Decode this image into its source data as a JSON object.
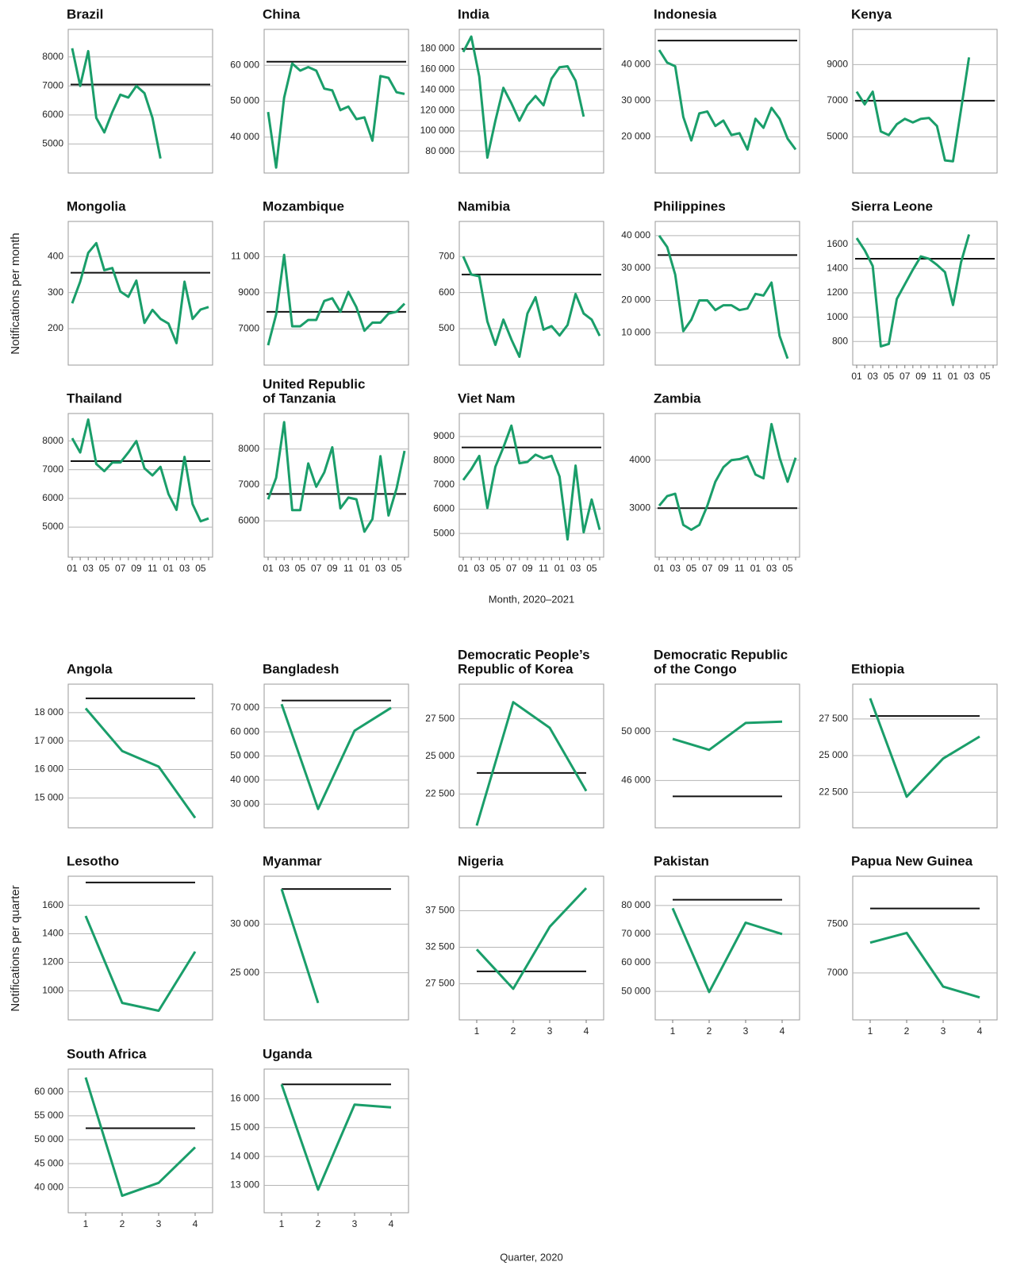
{
  "panel_groups": [
    {
      "ylabel": "Notifications per month",
      "xlabel": "Month, 2020–2021"
    },
    {
      "ylabel": "Notifications per quarter",
      "xlabel": "Quarter, 2020"
    }
  ],
  "chart_data": [
    {
      "type": "line",
      "title": "Brazil",
      "color": "#1a9e6a",
      "baseline": 7050,
      "baseline_color": "#111",
      "values": [
        8300,
        7000,
        8200,
        5900,
        5400,
        6100,
        6700,
        6600,
        7000,
        6750,
        5900,
        4500,
        null,
        null,
        null,
        null,
        null,
        null
      ],
      "ylim": [
        4000,
        8950
      ],
      "yticks": [
        5000,
        6000,
        7000,
        8000
      ],
      "grid": true
    },
    {
      "type": "line",
      "title": "China",
      "color": "#1a9e6a",
      "baseline": 61000,
      "baseline_color": "#111",
      "values": [
        47000,
        31500,
        51000,
        60500,
        58500,
        59500,
        58500,
        53500,
        53000,
        47500,
        48500,
        45000,
        45500,
        39000,
        57000,
        56500,
        52500,
        52000
      ],
      "ylim": [
        30000,
        70000
      ],
      "yticks": [
        {
          "value": 40000,
          "label": "40 000"
        },
        {
          "value": 50000,
          "label": "50 000"
        },
        {
          "value": 60000,
          "label": "60 000"
        }
      ],
      "grid": true
    },
    {
      "type": "line",
      "title": "India",
      "color": "#1a9e6a",
      "baseline": 180000,
      "baseline_color": "#111",
      "values": [
        177000,
        192000,
        153000,
        74000,
        110000,
        142000,
        127000,
        110000,
        125000,
        134000,
        125000,
        151000,
        162000,
        163000,
        149000,
        114000,
        null,
        null
      ],
      "ylim": [
        59000,
        199000
      ],
      "yticks": [
        {
          "value": 80000,
          "label": "80 000"
        },
        {
          "value": 100000,
          "label": "100 000"
        },
        {
          "value": 120000,
          "label": "120 000"
        },
        {
          "value": 140000,
          "label": "140 000"
        },
        {
          "value": 160000,
          "label": "160 000"
        },
        {
          "value": 180000,
          "label": "180 000"
        }
      ],
      "grid": true
    },
    {
      "type": "line",
      "title": "Indonesia",
      "color": "#1a9e6a",
      "baseline": 46600,
      "baseline_color": "#111",
      "values": [
        44000,
        40500,
        39500,
        25500,
        19000,
        26500,
        27000,
        23000,
        24500,
        20500,
        21000,
        16500,
        25000,
        22500,
        28000,
        25000,
        19500,
        16500
      ],
      "ylim": [
        10000,
        49700
      ],
      "yticks": [
        {
          "value": 20000,
          "label": "20 000"
        },
        {
          "value": 30000,
          "label": "30 000"
        },
        {
          "value": 40000,
          "label": "40 000"
        }
      ],
      "grid": true
    },
    {
      "type": "line",
      "title": "Kenya",
      "color": "#1a9e6a",
      "baseline": 7000,
      "baseline_color": "#111",
      "values": [
        7500,
        6800,
        7500,
        5300,
        5100,
        5700,
        6000,
        5800,
        6000,
        6050,
        5600,
        3700,
        3650,
        6500,
        9400,
        null,
        null,
        null
      ],
      "ylim": [
        3000,
        10950
      ],
      "yticks": [
        5000,
        7000,
        9000
      ],
      "grid": true
    },
    {
      "type": "line",
      "title": "Mongolia",
      "color": "#1a9e6a",
      "baseline": 355,
      "baseline_color": "#111",
      "values": [
        270,
        330,
        410,
        437,
        362,
        368,
        303,
        288,
        333,
        216,
        252,
        227,
        214,
        160,
        330,
        227,
        253,
        260
      ],
      "ylim": [
        99,
        497
      ],
      "yticks": [
        200,
        300,
        400
      ],
      "grid": true
    },
    {
      "type": "line",
      "title": "Mozambique",
      "color": "#1a9e6a",
      "baseline": 7950,
      "baseline_color": "#111",
      "values": [
        6100,
        7800,
        11100,
        7150,
        7150,
        7500,
        7500,
        8550,
        8700,
        7950,
        9050,
        8200,
        6900,
        7350,
        7350,
        7850,
        7950,
        8400
      ],
      "ylim": [
        5000,
        12950
      ],
      "yticks": [
        7000,
        9000,
        {
          "value": 11000,
          "label": "11 000"
        }
      ],
      "grid": true
    },
    {
      "type": "line",
      "title": "Namibia",
      "color": "#1a9e6a",
      "baseline": 650,
      "baseline_color": "#111",
      "values": [
        700,
        650,
        645,
        520,
        455,
        525,
        470,
        422,
        542,
        587,
        497,
        507,
        481,
        510,
        596,
        542,
        525,
        480
      ],
      "ylim": [
        399,
        797
      ],
      "yticks": [
        500,
        600,
        700
      ],
      "grid": true
    },
    {
      "type": "line",
      "title": "Philippines",
      "color": "#1a9e6a",
      "baseline": 34000,
      "baseline_color": "#111",
      "values": [
        40000,
        36500,
        28000,
        10500,
        14000,
        20000,
        20000,
        17000,
        18500,
        18500,
        17000,
        17500,
        22000,
        21500,
        25500,
        9000,
        2000,
        null
      ],
      "ylim": [
        0,
        44400
      ],
      "yticks": [
        {
          "value": 10000,
          "label": "10 000"
        },
        {
          "value": 20000,
          "label": "20 000"
        },
        {
          "value": 30000,
          "label": "30 000"
        },
        {
          "value": 40000,
          "label": "40 000"
        }
      ],
      "grid": true
    },
    {
      "type": "line",
      "title": "Sierra Leone",
      "color": "#1a9e6a",
      "baseline": 1480,
      "baseline_color": "#111",
      "categories": [
        "01",
        null,
        "03",
        null,
        "05",
        null,
        "07",
        null,
        "09",
        null,
        "11",
        null,
        "01",
        null,
        "03",
        null,
        "05",
        null
      ],
      "values": [
        1650,
        1550,
        1420,
        760,
        780,
        1150,
        1270,
        1390,
        1500,
        1480,
        1430,
        1370,
        1100,
        1450,
        1680,
        null,
        null,
        null
      ],
      "ylim": [
        606,
        1787
      ],
      "yticks": [
        800,
        1000,
        1200,
        1400,
        1600
      ],
      "grid": true
    },
    {
      "type": "line",
      "title": "Thailand",
      "color": "#1a9e6a",
      "baseline": 7300,
      "baseline_color": "#111",
      "categories": [
        "01",
        null,
        "03",
        null,
        "05",
        null,
        "07",
        null,
        "09",
        null,
        "11",
        null,
        "01",
        null,
        "03",
        null,
        "05",
        null
      ],
      "values": [
        8100,
        7600,
        8750,
        7200,
        6950,
        7250,
        7250,
        7600,
        8000,
        7050,
        6800,
        7100,
        6150,
        5600,
        7450,
        5800,
        5200,
        5300
      ],
      "ylim": [
        3950,
        8960
      ],
      "yticks": [
        5000,
        6000,
        7000,
        8000
      ],
      "grid": true
    },
    {
      "type": "line",
      "title": [
        "United Republic",
        "of Tanzania"
      ],
      "color": "#1a9e6a",
      "baseline": 6750,
      "baseline_color": "#111",
      "categories": [
        "01",
        null,
        "03",
        null,
        "05",
        null,
        "07",
        null,
        "09",
        null,
        "11",
        null,
        "01",
        null,
        "03",
        null,
        "05",
        null
      ],
      "values": [
        6600,
        7200,
        8750,
        6300,
        6300,
        7600,
        6950,
        7350,
        8050,
        6350,
        6650,
        6600,
        5700,
        6050,
        7800,
        6150,
        6900,
        7950
      ],
      "ylim": [
        4990,
        8990
      ],
      "yticks": [
        6000,
        7000,
        8000
      ],
      "grid": true
    },
    {
      "type": "line",
      "title": "Viet Nam",
      "color": "#1a9e6a",
      "baseline": 8550,
      "baseline_color": "#111",
      "categories": [
        "01",
        null,
        "03",
        null,
        "05",
        null,
        "07",
        null,
        "09",
        null,
        "11",
        null,
        "01",
        null,
        "03",
        null,
        "05",
        null
      ],
      "values": [
        7200,
        7650,
        8200,
        6050,
        7750,
        8550,
        9450,
        7900,
        7950,
        8250,
        8100,
        8200,
        7350,
        4750,
        7800,
        5050,
        6400,
        5150
      ],
      "ylim": [
        4020,
        9950
      ],
      "yticks": [
        5000,
        6000,
        7000,
        8000,
        9000
      ],
      "grid": true
    },
    {
      "type": "line",
      "title": "Zambia",
      "color": "#1a9e6a",
      "baseline": 3000,
      "baseline_color": "#111",
      "categories": [
        "01",
        null,
        "03",
        null,
        "05",
        null,
        "07",
        null,
        "09",
        null,
        "11",
        null,
        "01",
        null,
        "03",
        null,
        "05",
        null
      ],
      "values": [
        3050,
        3250,
        3300,
        2650,
        2550,
        2650,
        3050,
        3550,
        3850,
        4000,
        4020,
        4080,
        3700,
        3620,
        4750,
        4050,
        3550,
        4050
      ],
      "ylim": [
        1980,
        4970
      ],
      "yticks": [
        3000,
        4000
      ],
      "grid": true
    },
    {
      "type": "line",
      "title": "Angola",
      "color": "#1a9e6a",
      "baseline": 18500,
      "baseline_color": "#111",
      "values": [
        18150,
        16650,
        16100,
        14300
      ],
      "ylim": [
        13950,
        19000
      ],
      "yticks": [
        {
          "value": 15000,
          "label": "15 000"
        },
        {
          "value": 16000,
          "label": "16 000"
        },
        {
          "value": 17000,
          "label": "17 000"
        },
        {
          "value": 18000,
          "label": "18 000"
        }
      ],
      "grid": true
    },
    {
      "type": "line",
      "title": "Bangladesh",
      "color": "#1a9e6a",
      "baseline": 73000,
      "baseline_color": "#111",
      "values": [
        71500,
        28000,
        60500,
        70000
      ],
      "ylim": [
        20200,
        79800
      ],
      "yticks": [
        {
          "value": 30000,
          "label": "30 000"
        },
        {
          "value": 40000,
          "label": "40 000"
        },
        {
          "value": 50000,
          "label": "50 000"
        },
        {
          "value": 60000,
          "label": "60 000"
        },
        {
          "value": 70000,
          "label": "70 000"
        }
      ],
      "grid": true
    },
    {
      "type": "line",
      "title": [
        "Democratic People’s",
        "Republic of Korea"
      ],
      "color": "#1a9e6a",
      "baseline": 23900,
      "baseline_color": "#111",
      "values": [
        20400,
        28600,
        26900,
        22700
      ],
      "ylim": [
        20250,
        29800
      ],
      "yticks": [
        {
          "value": 22500,
          "label": "22 500"
        },
        {
          "value": 25000,
          "label": "25 000"
        },
        {
          "value": 27500,
          "label": "27 500"
        }
      ],
      "grid": true
    },
    {
      "type": "line",
      "title": [
        "Democratic Republic",
        "of the Congo"
      ],
      "color": "#1a9e6a",
      "baseline": 44700,
      "baseline_color": "#111",
      "values": [
        49400,
        48500,
        50700,
        50800
      ],
      "ylim": [
        42130,
        53870
      ],
      "yticks": [
        {
          "value": 46000,
          "label": "46 000"
        },
        {
          "value": 50000,
          "label": "50 000"
        }
      ],
      "grid": true
    },
    {
      "type": "line",
      "title": "Ethiopia",
      "color": "#1a9e6a",
      "baseline": 27700,
      "baseline_color": "#111",
      "values": [
        28900,
        22200,
        24800,
        26300
      ],
      "ylim": [
        20080,
        29870
      ],
      "yticks": [
        {
          "value": 22500,
          "label": "22 500"
        },
        {
          "value": 25000,
          "label": "25 000"
        },
        {
          "value": 27500,
          "label": "27 500"
        }
      ],
      "grid": true
    },
    {
      "type": "line",
      "title": "Lesotho",
      "color": "#1a9e6a",
      "baseline": 1760,
      "baseline_color": "#111",
      "values": [
        1525,
        915,
        860,
        1275
      ],
      "ylim": [
        796,
        1804
      ],
      "yticks": [
        1000,
        1200,
        1400,
        1600
      ],
      "grid": true
    },
    {
      "type": "line",
      "title": "Myanmar",
      "color": "#1a9e6a",
      "baseline": 33600,
      "baseline_color": "#111",
      "values": [
        33600,
        21900,
        null,
        null
      ],
      "ylim": [
        20160,
        34920
      ],
      "yticks": [
        {
          "value": 25000,
          "label": "25 000"
        },
        {
          "value": 30000,
          "label": "30 000"
        }
      ],
      "grid": true
    },
    {
      "type": "line",
      "title": "Nigeria",
      "color": "#1a9e6a",
      "baseline": 29200,
      "baseline_color": "#111",
      "categories": [
        "1",
        "2",
        "3",
        "4"
      ],
      "values": [
        32200,
        26800,
        35300,
        40600
      ],
      "ylim": [
        22550,
        42230
      ],
      "yticks": [
        {
          "value": 27500,
          "label": "27 500"
        },
        {
          "value": 32500,
          "label": "32 500"
        },
        {
          "value": 37500,
          "label": "37 500"
        }
      ],
      "grid": true
    },
    {
      "type": "line",
      "title": "Pakistan",
      "color": "#1a9e6a",
      "baseline": 82000,
      "baseline_color": "#111",
      "categories": [
        "1",
        "2",
        "3",
        "4"
      ],
      "values": [
        79000,
        49800,
        74000,
        70000
      ],
      "ylim": [
        40080,
        90200
      ],
      "yticks": [
        {
          "value": 50000,
          "label": "50 000"
        },
        {
          "value": 60000,
          "label": "60 000"
        },
        {
          "value": 70000,
          "label": "70 000"
        },
        {
          "value": 80000,
          "label": "80 000"
        }
      ],
      "grid": true
    },
    {
      "type": "line",
      "title": "Papua New Guinea",
      "color": "#1a9e6a",
      "baseline": 7660,
      "baseline_color": "#111",
      "categories": [
        "1",
        "2",
        "3",
        "4"
      ],
      "values": [
        7310,
        7410,
        6860,
        6750
      ],
      "ylim": [
        6520,
        7990
      ],
      "yticks": [
        7000,
        7500
      ],
      "grid": true
    },
    {
      "type": "line",
      "title": "South Africa",
      "color": "#1a9e6a",
      "baseline": 52400,
      "baseline_color": "#111",
      "categories": [
        "1",
        "2",
        "3",
        "4"
      ],
      "values": [
        63000,
        38300,
        41000,
        48400
      ],
      "ylim": [
        34750,
        64750
      ],
      "yticks": [
        {
          "value": 40000,
          "label": "40 000"
        },
        {
          "value": 45000,
          "label": "45 000"
        },
        {
          "value": 50000,
          "label": "50 000"
        },
        {
          "value": 55000,
          "label": "55 000"
        },
        {
          "value": 60000,
          "label": "60 000"
        }
      ],
      "grid": true
    },
    {
      "type": "line",
      "title": "Uganda",
      "color": "#1a9e6a",
      "baseline": 16500,
      "baseline_color": "#111",
      "categories": [
        "1",
        "2",
        "3",
        "4"
      ],
      "values": [
        16500,
        12850,
        15800,
        15700
      ],
      "ylim": [
        12050,
        17030
      ],
      "yticks": [
        {
          "value": 13000,
          "label": "13 000"
        },
        {
          "value": 14000,
          "label": "14 000"
        },
        {
          "value": 15000,
          "label": "15 000"
        },
        {
          "value": 16000,
          "label": "16 000"
        }
      ],
      "grid": true
    }
  ]
}
